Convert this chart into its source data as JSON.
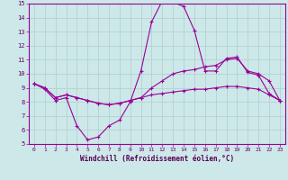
{
  "xlabel": "Windchill (Refroidissement éolien,°C)",
  "background_color": "#cde8e8",
  "grid_color": "#b0cece",
  "line_color": "#990099",
  "x": [
    0,
    1,
    2,
    3,
    4,
    5,
    6,
    7,
    8,
    9,
    10,
    11,
    12,
    13,
    14,
    15,
    16,
    17,
    18,
    19,
    20,
    21,
    22,
    23
  ],
  "line1": [
    9.3,
    8.9,
    8.1,
    8.3,
    6.3,
    5.3,
    5.5,
    6.3,
    6.7,
    8.0,
    10.2,
    13.7,
    15.2,
    15.1,
    14.8,
    13.1,
    10.2,
    10.2,
    11.1,
    11.2,
    10.1,
    9.9,
    8.6,
    8.1
  ],
  "line2": [
    9.3,
    9.0,
    8.3,
    8.5,
    8.3,
    8.1,
    7.9,
    7.8,
    7.9,
    8.1,
    8.3,
    9.0,
    9.5,
    10.0,
    10.2,
    10.3,
    10.5,
    10.6,
    11.0,
    11.1,
    10.2,
    10.0,
    9.5,
    8.1
  ],
  "line3": [
    9.3,
    9.0,
    8.3,
    8.5,
    8.3,
    8.1,
    7.9,
    7.8,
    7.9,
    8.1,
    8.3,
    8.5,
    8.6,
    8.7,
    8.8,
    8.9,
    8.9,
    9.0,
    9.1,
    9.1,
    9.0,
    8.9,
    8.5,
    8.1
  ],
  "ylim": [
    5,
    15
  ],
  "xlim": [
    -0.5,
    23.5
  ],
  "yticks": [
    5,
    6,
    7,
    8,
    9,
    10,
    11,
    12,
    13,
    14,
    15
  ],
  "xticks": [
    0,
    1,
    2,
    3,
    4,
    5,
    6,
    7,
    8,
    9,
    10,
    11,
    12,
    13,
    14,
    15,
    16,
    17,
    18,
    19,
    20,
    21,
    22,
    23
  ]
}
